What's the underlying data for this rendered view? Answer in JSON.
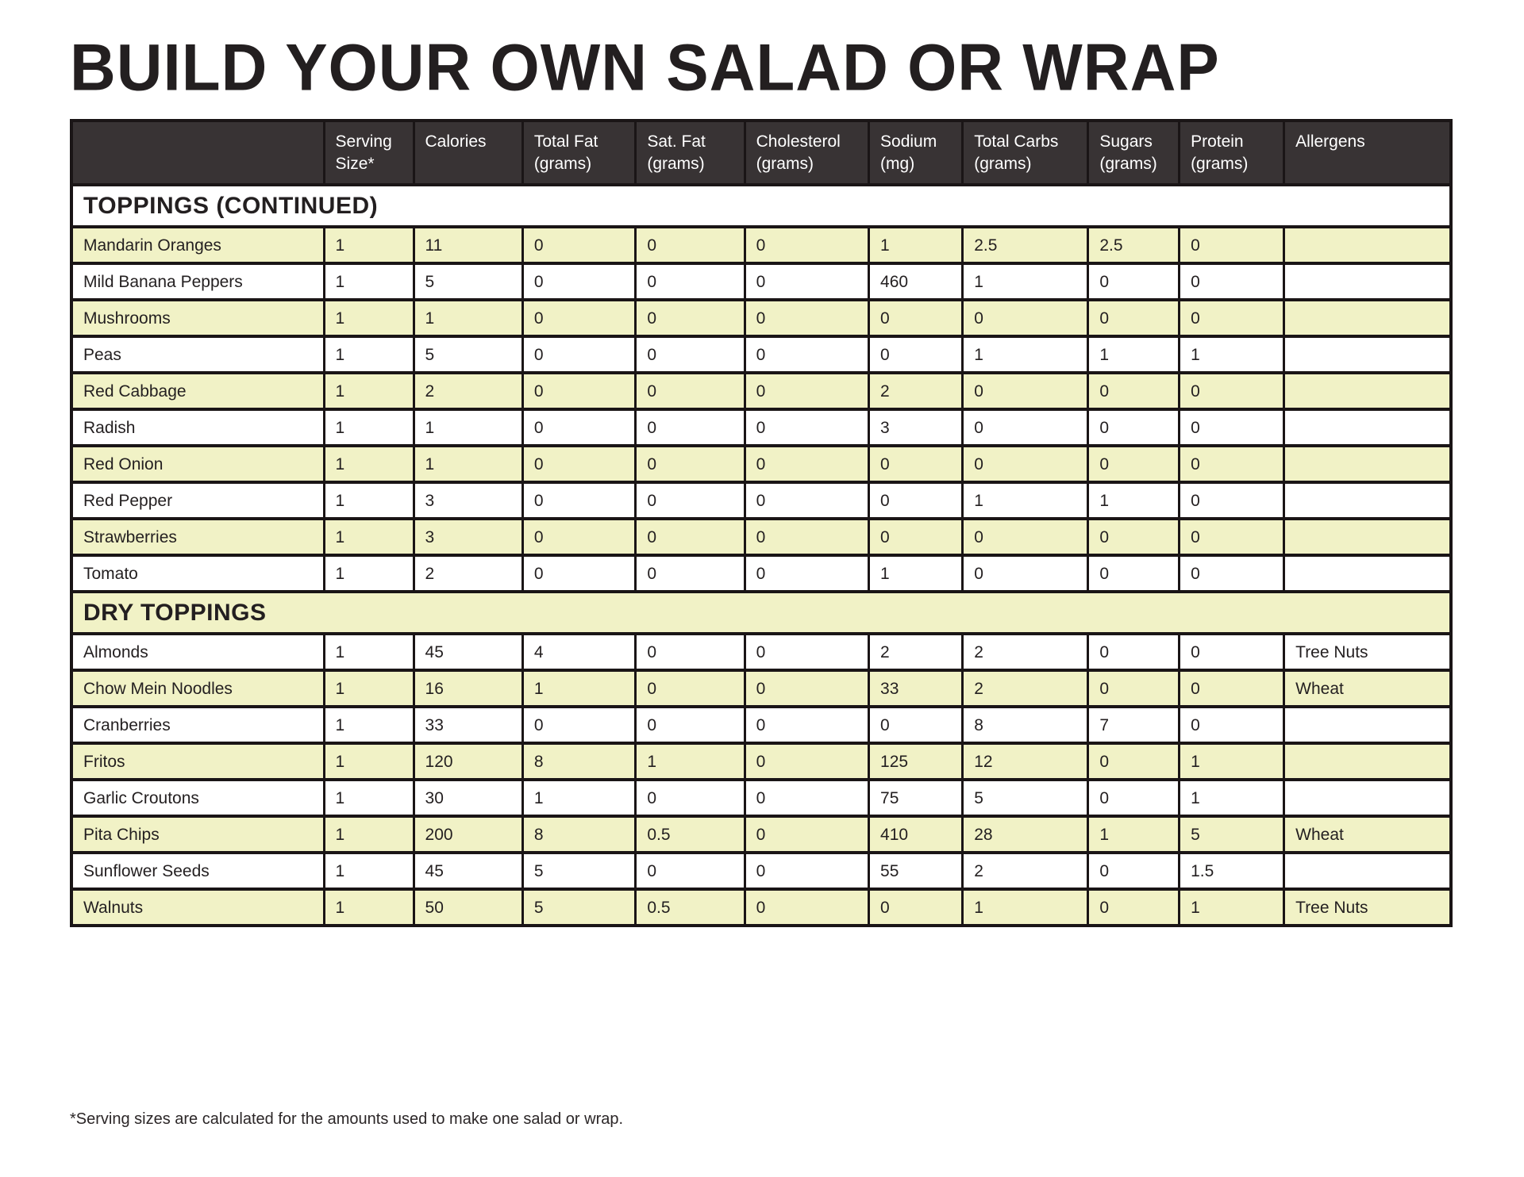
{
  "page": {
    "title": "BUILD YOUR OWN SALAD OR WRAP",
    "footnote": "*Serving sizes are calculated for the amounts used to make one salad or wrap."
  },
  "colors": {
    "header_bg": "#383334",
    "header_text": "#ffffff",
    "row_alt_bg": "#f1f2c6",
    "border": "#1a1516",
    "text": "#231f20"
  },
  "table": {
    "columns": [
      "",
      "Serving Size*",
      "Calories",
      "Total Fat (grams)",
      "Sat. Fat (grams)",
      "Cholesterol (grams)",
      "Sodium (mg)",
      "Total Carbs (grams)",
      "Sugars (grams)",
      "Protein (grams)",
      "Allergens"
    ],
    "sections": [
      {
        "label": "TOPPINGS (CONTINUED)",
        "rows": [
          {
            "name": "Mandarin Oranges",
            "values": [
              "1",
              "11",
              "0",
              "0",
              "0",
              "1",
              "2.5",
              "2.5",
              "0",
              ""
            ]
          },
          {
            "name": "Mild Banana Peppers",
            "values": [
              "1",
              "5",
              "0",
              "0",
              "0",
              "460",
              "1",
              "0",
              "0",
              ""
            ]
          },
          {
            "name": "Mushrooms",
            "values": [
              "1",
              "1",
              "0",
              "0",
              "0",
              "0",
              "0",
              "0",
              "0",
              ""
            ]
          },
          {
            "name": "Peas",
            "values": [
              "1",
              "5",
              "0",
              "0",
              "0",
              "0",
              "1",
              "1",
              "1",
              ""
            ]
          },
          {
            "name": "Red Cabbage",
            "values": [
              "1",
              "2",
              "0",
              "0",
              "0",
              "2",
              "0",
              "0",
              "0",
              ""
            ]
          },
          {
            "name": "Radish",
            "values": [
              "1",
              "1",
              "0",
              "0",
              "0",
              "3",
              "0",
              "0",
              "0",
              ""
            ]
          },
          {
            "name": "Red Onion",
            "values": [
              "1",
              "1",
              "0",
              "0",
              "0",
              "0",
              "0",
              "0",
              "0",
              ""
            ]
          },
          {
            "name": "Red Pepper",
            "values": [
              "1",
              "3",
              "0",
              "0",
              "0",
              "0",
              "1",
              "1",
              "0",
              ""
            ]
          },
          {
            "name": "Strawberries",
            "values": [
              "1",
              "3",
              "0",
              "0",
              "0",
              "0",
              "0",
              "0",
              "0",
              ""
            ]
          },
          {
            "name": "Tomato",
            "values": [
              "1",
              "2",
              "0",
              "0",
              "0",
              "1",
              "0",
              "0",
              "0",
              ""
            ]
          }
        ]
      },
      {
        "label": "DRY TOPPINGS",
        "rows": [
          {
            "name": "Almonds",
            "values": [
              "1",
              "45",
              "4",
              "0",
              "0",
              "2",
              "2",
              "0",
              "0",
              "Tree Nuts"
            ]
          },
          {
            "name": "Chow Mein Noodles",
            "values": [
              "1",
              "16",
              "1",
              "0",
              "0",
              "33",
              "2",
              "0",
              "0",
              "Wheat"
            ]
          },
          {
            "name": "Cranberries",
            "values": [
              "1",
              "33",
              "0",
              "0",
              "0",
              "0",
              "8",
              "7",
              "0",
              ""
            ]
          },
          {
            "name": "Fritos",
            "values": [
              "1",
              "120",
              "8",
              "1",
              "0",
              "125",
              "12",
              "0",
              "1",
              ""
            ]
          },
          {
            "name": "Garlic Croutons",
            "values": [
              "1",
              "30",
              "1",
              "0",
              "0",
              "75",
              "5",
              "0",
              "1",
              ""
            ]
          },
          {
            "name": "Pita Chips",
            "values": [
              "1",
              "200",
              "8",
              "0.5",
              "0",
              "410",
              "28",
              "1",
              "5",
              "Wheat"
            ]
          },
          {
            "name": "Sunflower Seeds",
            "values": [
              "1",
              "45",
              "5",
              "0",
              "0",
              "55",
              "2",
              "0",
              "1.5",
              ""
            ]
          },
          {
            "name": "Walnuts",
            "values": [
              "1",
              "50",
              "5",
              "0.5",
              "0",
              "0",
              "1",
              "0",
              "1",
              "Tree Nuts"
            ]
          }
        ]
      }
    ]
  }
}
